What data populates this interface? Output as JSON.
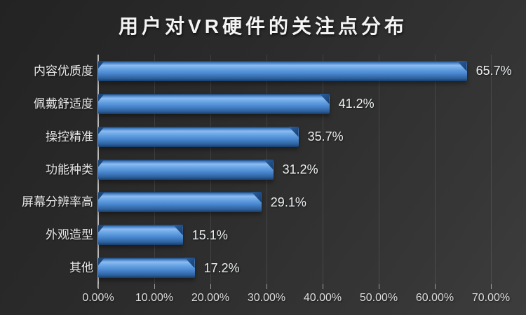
{
  "chart_data": {
    "type": "bar",
    "orientation": "horizontal",
    "title": "用户对VR硬件的关注点分布",
    "categories": [
      "内容优质度",
      "佩戴舒适度",
      "操控精准",
      "功能种类",
      "屏幕分辨率高",
      "外观造型",
      "其他"
    ],
    "values": [
      65.7,
      41.2,
      35.7,
      31.2,
      29.1,
      15.1,
      17.2
    ],
    "value_labels": [
      "65.7%",
      "41.2%",
      "35.7%",
      "31.2%",
      "29.1%",
      "15.1%",
      "17.2%"
    ],
    "x_ticks": [
      "0.00%",
      "10.00%",
      "20.00%",
      "30.00%",
      "40.00%",
      "50.00%",
      "60.00%",
      "70.00%"
    ],
    "x_tick_values": [
      0,
      10,
      20,
      30,
      40,
      50,
      60,
      70
    ],
    "xlim": [
      0,
      70
    ],
    "xlabel": "",
    "ylabel": "",
    "grid": true,
    "legend": "none",
    "colors": {
      "background_dark": "#232323",
      "background_light": "#3d3d3d",
      "bar_highlight": "#8cbbf1",
      "bar_mid": "#4886cf",
      "bar_dark": "#173d6b",
      "text": "#e8e8e8",
      "gridline": "#4a4a4a",
      "axis": "#b9b9b9"
    }
  }
}
